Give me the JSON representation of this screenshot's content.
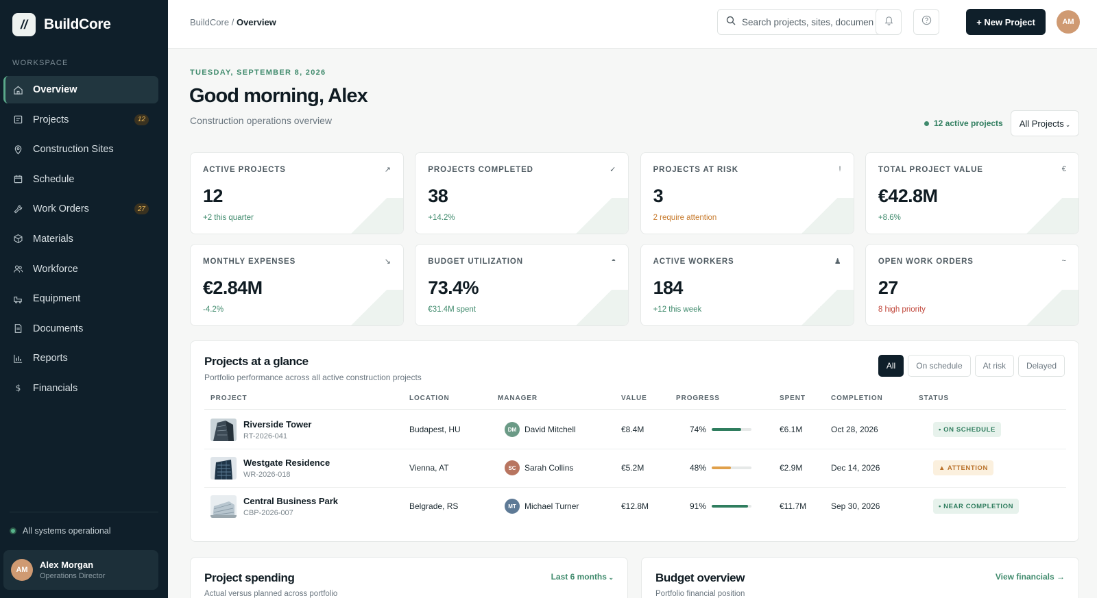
{
  "brand": {
    "mark": "//",
    "name": "BuildCore"
  },
  "sidebar": {
    "section_label": "WORKSPACE",
    "items": [
      {
        "label": "Overview",
        "icon": "home-icon",
        "active": true
      },
      {
        "label": "Projects",
        "icon": "projects-icon",
        "badge": "12"
      },
      {
        "label": "Construction Sites",
        "icon": "map-pin-icon"
      },
      {
        "label": "Schedule",
        "icon": "calendar-icon"
      },
      {
        "label": "Work Orders",
        "icon": "wrench-icon",
        "badge": "27"
      },
      {
        "label": "Materials",
        "icon": "cube-icon"
      },
      {
        "label": "Workforce",
        "icon": "users-icon"
      },
      {
        "label": "Equipment",
        "icon": "truck-icon"
      },
      {
        "label": "Documents",
        "icon": "document-icon"
      },
      {
        "label": "Reports",
        "icon": "bar-chart-icon"
      },
      {
        "label": "Financials",
        "icon": "dollar-icon"
      }
    ],
    "system_status": "All systems operational",
    "user": {
      "initials": "AM",
      "name": "Alex Morgan",
      "role": "Operations Director"
    }
  },
  "topbar": {
    "breadcrumb_root": "BuildCore",
    "breadcrumb_sep": "/",
    "breadcrumb_current": "Overview",
    "search_placeholder": "Search projects, sites, documents",
    "new_project_label": "+ New Project",
    "avatar_initials": "AM"
  },
  "header": {
    "date": "TUESDAY, SEPTEMBER 8, 2026",
    "greeting": "Good morning, Alex",
    "subtitle": "Construction operations overview",
    "active_projects": "12 active projects",
    "filter_select": "All Projects"
  },
  "stats": [
    {
      "label": "ACTIVE PROJECTS",
      "icon": "↗",
      "value": "12",
      "sub": "+2 this quarter",
      "tone": "green"
    },
    {
      "label": "PROJECTS COMPLETED",
      "icon": "✓",
      "value": "38",
      "sub": "+14.2%",
      "tone": "green"
    },
    {
      "label": "PROJECTS AT RISK",
      "icon": "!",
      "value": "3",
      "sub": "2 require attention",
      "tone": "orange"
    },
    {
      "label": "TOTAL PROJECT VALUE",
      "icon": "€",
      "value": "€42.8M",
      "sub": "+8.6%",
      "tone": "green"
    },
    {
      "label": "MONTHLY EXPENSES",
      "icon": "↘",
      "value": "€2.84M",
      "sub": "-4.2%",
      "tone": "green"
    },
    {
      "label": "BUDGET UTILIZATION",
      "icon": "◓",
      "value": "73.4%",
      "sub": "€31.4M spent",
      "tone": "green"
    },
    {
      "label": "ACTIVE WORKERS",
      "icon": "♟",
      "value": "184",
      "sub": "+12 this week",
      "tone": "green"
    },
    {
      "label": "OPEN WORK ORDERS",
      "icon": "~",
      "value": "27",
      "sub": "8 high priority",
      "tone": "red"
    }
  ],
  "projects_table": {
    "title": "Projects at a glance",
    "subtitle": "Portfolio performance across all active construction projects",
    "filters": [
      "All",
      "On schedule",
      "At risk",
      "Delayed"
    ],
    "columns": [
      "PROJECT",
      "LOCATION",
      "MANAGER",
      "VALUE",
      "PROGRESS",
      "SPENT",
      "COMPLETION",
      "STATUS"
    ],
    "rows": [
      {
        "name": "Riverside Tower",
        "code": "RT-2026-041",
        "location": "Budapest, HU",
        "manager_initials": "DM",
        "manager": "David Mitchell",
        "manager_color": "#6b9a86",
        "value": "€8.4M",
        "progress_label": "74%",
        "progress": 0.74,
        "bar_color": "#2f7d5e",
        "spent": "€6.1M",
        "completion": "Oct 28, 2026",
        "status": "• ON SCHEDULE",
        "status_tone": "green"
      },
      {
        "name": "Westgate Residence",
        "code": "WR-2026-018",
        "location": "Vienna, AT",
        "manager_initials": "SC",
        "manager": "Sarah Collins",
        "manager_color": "#b87560",
        "value": "€5.2M",
        "progress_label": "48%",
        "progress": 0.48,
        "bar_color": "#e0a04a",
        "spent": "€2.9M",
        "completion": "Dec 14, 2026",
        "status": "▲ ATTENTION",
        "status_tone": "orange"
      },
      {
        "name": "Central Business Park",
        "code": "CBP-2026-007",
        "location": "Belgrade, RS",
        "manager_initials": "MT",
        "manager": "Michael Turner",
        "manager_color": "#5e7a96",
        "value": "€12.8M",
        "progress_label": "91%",
        "progress": 0.91,
        "bar_color": "#2f7d5e",
        "spent": "€11.7M",
        "completion": "Sep 30, 2026",
        "status": "• NEAR COMPLETION",
        "status_tone": "green"
      }
    ]
  },
  "spending": {
    "title": "Project spending",
    "subtitle": "Actual versus planned across portfolio",
    "range": "Last 6 months"
  },
  "budget": {
    "title": "Budget overview",
    "subtitle": "Portfolio financial position",
    "link": "View financials →"
  },
  "colors": {
    "sidebar_bg": "#0f1f2a",
    "accent_green": "#3f8a6c",
    "warning": "#c77a2c",
    "danger": "#c24a3e"
  }
}
